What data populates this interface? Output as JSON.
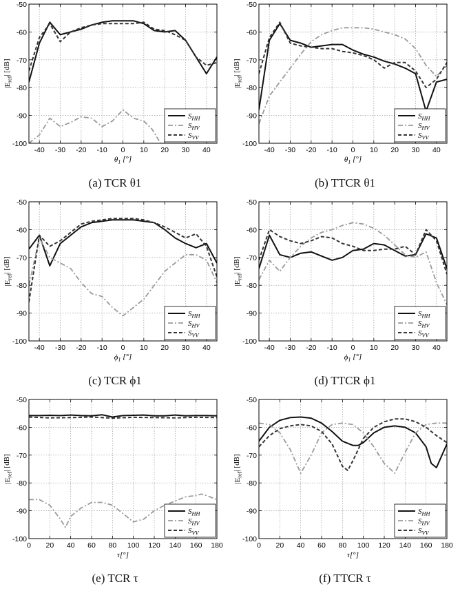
{
  "figure": {
    "ylabel": "|E_ref| [dB]",
    "legend": [
      "S_HH",
      "S_HV",
      "S_VV"
    ],
    "series_colors": {
      "S_HH": "#111111",
      "S_HV": "#9a9a9a",
      "S_VV": "#333333"
    }
  },
  "chart_data": [
    {
      "id": "a",
      "type": "line",
      "caption": "(a) TCR θ1",
      "xlabel": "θ1 [°]",
      "ylabel": "|E_ref| [dB]",
      "xlim": [
        -45,
        45
      ],
      "ylim": [
        -100,
        -50
      ],
      "xticks": [
        -40,
        -30,
        -20,
        -10,
        0,
        10,
        20,
        30,
        40
      ],
      "yticks": [
        -100,
        -90,
        -80,
        -70,
        -60,
        -50
      ],
      "grid": true,
      "legend_position": "bottom-right",
      "series": [
        {
          "name": "S_HH",
          "x": [
            -45,
            -40,
            -35,
            -30,
            -25,
            -20,
            -15,
            -10,
            -5,
            0,
            5,
            10,
            15,
            20,
            25,
            30,
            35,
            40,
            45
          ],
          "y": [
            -78,
            -64,
            -56.5,
            -61,
            -60,
            -59,
            -57.5,
            -56.5,
            -56,
            -56,
            -56,
            -57,
            -59.5,
            -60,
            -59.5,
            -63,
            -69,
            -75,
            -69
          ]
        },
        {
          "name": "S_HV",
          "x": [
            -45,
            -40,
            -35,
            -30,
            -25,
            -20,
            -15,
            -10,
            -5,
            0,
            5,
            10,
            14,
            18,
            20
          ],
          "y": [
            -100,
            -97,
            -91,
            -94,
            -92.5,
            -90.5,
            -91,
            -94,
            -92,
            -88,
            -91,
            -92,
            -95,
            -100,
            -100
          ]
        },
        {
          "name": "S_VV",
          "x": [
            -45,
            -40,
            -35,
            -30,
            -25,
            -20,
            -15,
            -10,
            -5,
            0,
            5,
            10,
            15,
            20,
            25,
            30,
            35,
            40,
            45
          ],
          "y": [
            -74,
            -62,
            -57,
            -63.5,
            -60,
            -58.5,
            -57.5,
            -57,
            -57,
            -57,
            -57,
            -56.5,
            -59,
            -59.5,
            -61,
            -63,
            -69,
            -72,
            -71
          ]
        }
      ]
    },
    {
      "id": "b",
      "type": "line",
      "caption": "(b) TTCR θ1",
      "xlabel": "θ1 [°]",
      "ylabel": "|E_ref| [dB]",
      "xlim": [
        -45,
        45
      ],
      "ylim": [
        -100,
        -50
      ],
      "xticks": [
        -40,
        -30,
        -20,
        -10,
        0,
        10,
        20,
        30,
        40
      ],
      "yticks": [
        -100,
        -90,
        -80,
        -70,
        -60,
        -50
      ],
      "grid": true,
      "legend_position": "bottom-right",
      "series": [
        {
          "name": "S_HH",
          "x": [
            -45,
            -40,
            -35,
            -30,
            -25,
            -20,
            -15,
            -10,
            -5,
            0,
            5,
            10,
            15,
            20,
            25,
            30,
            35,
            40,
            45
          ],
          "y": [
            -88,
            -63,
            -57,
            -63,
            -64,
            -65.5,
            -65,
            -64.5,
            -64.5,
            -66.5,
            -68,
            -69,
            -70.5,
            -71.5,
            -73,
            -75,
            -88.5,
            -78,
            -77
          ]
        },
        {
          "name": "S_HV",
          "x": [
            -45,
            -40,
            -35,
            -30,
            -25,
            -20,
            -15,
            -10,
            -5,
            0,
            5,
            10,
            15,
            20,
            25,
            30,
            35,
            40,
            45
          ],
          "y": [
            -93,
            -83,
            -78,
            -73,
            -68,
            -63.5,
            -61,
            -59.5,
            -58.5,
            -58.5,
            -58.5,
            -59,
            -60,
            -61,
            -62.5,
            -66,
            -72,
            -76,
            -72
          ]
        },
        {
          "name": "S_VV",
          "x": [
            -45,
            -40,
            -35,
            -30,
            -25,
            -20,
            -15,
            -10,
            -5,
            0,
            5,
            10,
            15,
            20,
            25,
            30,
            35,
            40,
            45
          ],
          "y": [
            -75,
            -62,
            -56.5,
            -64,
            -65,
            -65.5,
            -66,
            -66,
            -67,
            -67.5,
            -68.5,
            -70,
            -73,
            -71,
            -71,
            -74,
            -80,
            -77,
            -71
          ]
        }
      ]
    },
    {
      "id": "c",
      "type": "line",
      "caption": "(c) TCR ϕ1",
      "xlabel": "ϕ1 [°]",
      "ylabel": "|E_ref| [dB]",
      "xlim": [
        -45,
        45
      ],
      "ylim": [
        -100,
        -50
      ],
      "xticks": [
        -40,
        -30,
        -20,
        -10,
        0,
        10,
        20,
        30,
        40
      ],
      "yticks": [
        -100,
        -90,
        -80,
        -70,
        -60,
        -50
      ],
      "grid": true,
      "legend_position": "bottom-right",
      "series": [
        {
          "name": "S_HH",
          "x": [
            -45,
            -40,
            -35,
            -30,
            -25,
            -20,
            -15,
            -10,
            -5,
            0,
            5,
            10,
            15,
            20,
            25,
            30,
            35,
            40,
            45
          ],
          "y": [
            -67,
            -62,
            -73,
            -65,
            -62,
            -59,
            -57.5,
            -57,
            -56.5,
            -56.5,
            -56.5,
            -57,
            -57.5,
            -60,
            -63,
            -65,
            -66.5,
            -65,
            -72
          ]
        },
        {
          "name": "S_HV",
          "x": [
            -45,
            -40,
            -35,
            -30,
            -25,
            -20,
            -15,
            -10,
            -5,
            0,
            5,
            10,
            15,
            20,
            25,
            30,
            35,
            40,
            45
          ],
          "y": [
            -80,
            -63,
            -70,
            -72,
            -74,
            -79,
            -83,
            -84,
            -88,
            -91,
            -88,
            -85,
            -80,
            -75,
            -72,
            -69,
            -69,
            -71,
            -79
          ]
        },
        {
          "name": "S_VV",
          "x": [
            -45,
            -40,
            -35,
            -30,
            -25,
            -20,
            -15,
            -10,
            -5,
            0,
            5,
            10,
            15,
            20,
            25,
            30,
            35,
            40,
            45
          ],
          "y": [
            -86,
            -62,
            -66,
            -64,
            -61,
            -58,
            -57,
            -56.5,
            -56,
            -56,
            -56,
            -56.5,
            -57.5,
            -59,
            -61,
            -63,
            -61.5,
            -66,
            -77
          ]
        }
      ]
    },
    {
      "id": "d",
      "type": "line",
      "caption": "(d) TTCR ϕ1",
      "xlabel": "ϕ1 [°]",
      "ylabel": "|E_ref| [dB]",
      "xlim": [
        -45,
        45
      ],
      "ylim": [
        -100,
        -50
      ],
      "xticks": [
        -40,
        -30,
        -20,
        -10,
        0,
        10,
        20,
        30,
        40
      ],
      "yticks": [
        -100,
        -90,
        -80,
        -70,
        -60,
        -50
      ],
      "grid": true,
      "legend_position": "bottom-right",
      "series": [
        {
          "name": "S_HH",
          "x": [
            -45,
            -40,
            -35,
            -30,
            -25,
            -20,
            -15,
            -10,
            -5,
            0,
            5,
            10,
            15,
            20,
            25,
            30,
            35,
            40,
            45
          ],
          "y": [
            -74,
            -62,
            -69,
            -70,
            -68.5,
            -68,
            -69.5,
            -71,
            -70,
            -67.5,
            -67,
            -65,
            -65.5,
            -67.5,
            -69.5,
            -69,
            -61.5,
            -63,
            -74
          ]
        },
        {
          "name": "S_HV",
          "x": [
            -45,
            -40,
            -35,
            -30,
            -25,
            -20,
            -15,
            -10,
            -5,
            0,
            5,
            10,
            15,
            20,
            25,
            30,
            35,
            40,
            45
          ],
          "y": [
            -78,
            -71,
            -75,
            -70,
            -66,
            -63,
            -61,
            -60,
            -58.5,
            -57.5,
            -58,
            -59.5,
            -62,
            -65.5,
            -69,
            -70,
            -68,
            -79,
            -87
          ]
        },
        {
          "name": "S_VV",
          "x": [
            -45,
            -40,
            -35,
            -30,
            -25,
            -20,
            -15,
            -10,
            -5,
            0,
            5,
            10,
            15,
            20,
            25,
            30,
            35,
            40,
            45
          ],
          "y": [
            -71,
            -60,
            -62.5,
            -64,
            -65,
            -64,
            -62.5,
            -63,
            -65,
            -66,
            -67.5,
            -67.5,
            -67,
            -67,
            -66,
            -69,
            -60,
            -64,
            -76
          ]
        }
      ]
    },
    {
      "id": "e",
      "type": "line",
      "caption": "(e) TCR τ",
      "xlabel": "τ[°]",
      "ylabel": "|E_ref| [dB]",
      "xlim": [
        0,
        180
      ],
      "ylim": [
        -100,
        -50
      ],
      "xticks": [
        0,
        20,
        40,
        60,
        80,
        100,
        120,
        140,
        160,
        180
      ],
      "yticks": [
        -100,
        -90,
        -80,
        -70,
        -60,
        -50
      ],
      "grid": true,
      "legend_position": "bottom-right",
      "series": [
        {
          "name": "S_HH",
          "x": [
            0,
            10,
            20,
            30,
            40,
            50,
            60,
            70,
            80,
            90,
            100,
            110,
            120,
            130,
            140,
            150,
            160,
            170,
            180
          ],
          "y": [
            -55.8,
            -55.8,
            -55.7,
            -55.8,
            -55.6,
            -55.8,
            -55.9,
            -55.5,
            -56.3,
            -55.8,
            -55.7,
            -55.6,
            -55.9,
            -55.9,
            -55.6,
            -55.9,
            -55.8,
            -55.8,
            -55.9
          ]
        },
        {
          "name": "S_HV",
          "x": [
            0,
            10,
            20,
            30,
            35,
            40,
            50,
            60,
            70,
            80,
            90,
            100,
            110,
            120,
            130,
            140,
            150,
            160,
            165,
            170,
            180
          ],
          "y": [
            -86,
            -86,
            -88,
            -93,
            -96,
            -92,
            -89,
            -87,
            -87,
            -88,
            -91,
            -94,
            -93,
            -90,
            -88,
            -86.5,
            -85,
            -84.5,
            -84,
            -84.5,
            -86
          ]
        },
        {
          "name": "S_VV",
          "x": [
            0,
            20,
            40,
            60,
            80,
            100,
            120,
            140,
            160,
            180
          ],
          "y": [
            -56.3,
            -56.6,
            -56.5,
            -56.3,
            -56.7,
            -56.4,
            -56.5,
            -56.6,
            -56.4,
            -56.5
          ]
        }
      ]
    },
    {
      "id": "f",
      "type": "line",
      "caption": "(f) TTCR τ",
      "xlabel": "τ[°]",
      "ylabel": "|E_ref| [dB]",
      "xlim": [
        0,
        180
      ],
      "ylim": [
        -100,
        -50
      ],
      "xticks": [
        0,
        20,
        40,
        60,
        80,
        100,
        120,
        140,
        160,
        180
      ],
      "yticks": [
        -100,
        -90,
        -80,
        -70,
        -60,
        -50
      ],
      "grid": true,
      "legend_position": "bottom-right",
      "series": [
        {
          "name": "S_HH",
          "x": [
            0,
            10,
            20,
            30,
            40,
            50,
            60,
            70,
            80,
            90,
            95,
            100,
            110,
            120,
            130,
            140,
            150,
            160,
            165,
            170,
            180
          ],
          "y": [
            -65,
            -60,
            -57.5,
            -56.5,
            -56.3,
            -56.7,
            -58.5,
            -61.5,
            -65,
            -66.5,
            -66.5,
            -65.5,
            -62,
            -60,
            -59.5,
            -60,
            -62,
            -67,
            -73,
            -74.5,
            -66
          ]
        },
        {
          "name": "S_HV",
          "x": [
            0,
            10,
            20,
            30,
            40,
            50,
            60,
            70,
            80,
            90,
            100,
            110,
            120,
            130,
            140,
            150,
            160,
            170,
            180
          ],
          "y": [
            -58.5,
            -59,
            -62,
            -68,
            -76.5,
            -70,
            -62,
            -59,
            -58.5,
            -59,
            -62,
            -67,
            -73,
            -76.5,
            -69,
            -62,
            -59,
            -58.5,
            -58.5
          ]
        },
        {
          "name": "S_VV",
          "x": [
            0,
            10,
            20,
            30,
            40,
            50,
            60,
            70,
            80,
            85,
            90,
            100,
            110,
            120,
            130,
            140,
            150,
            160,
            170,
            180
          ],
          "y": [
            -67,
            -63,
            -60.5,
            -59.5,
            -59,
            -59.5,
            -61.5,
            -66,
            -74,
            -75.5,
            -72,
            -64,
            -60,
            -58,
            -57,
            -57,
            -58,
            -60,
            -63,
            -65.5
          ]
        }
      ]
    }
  ]
}
